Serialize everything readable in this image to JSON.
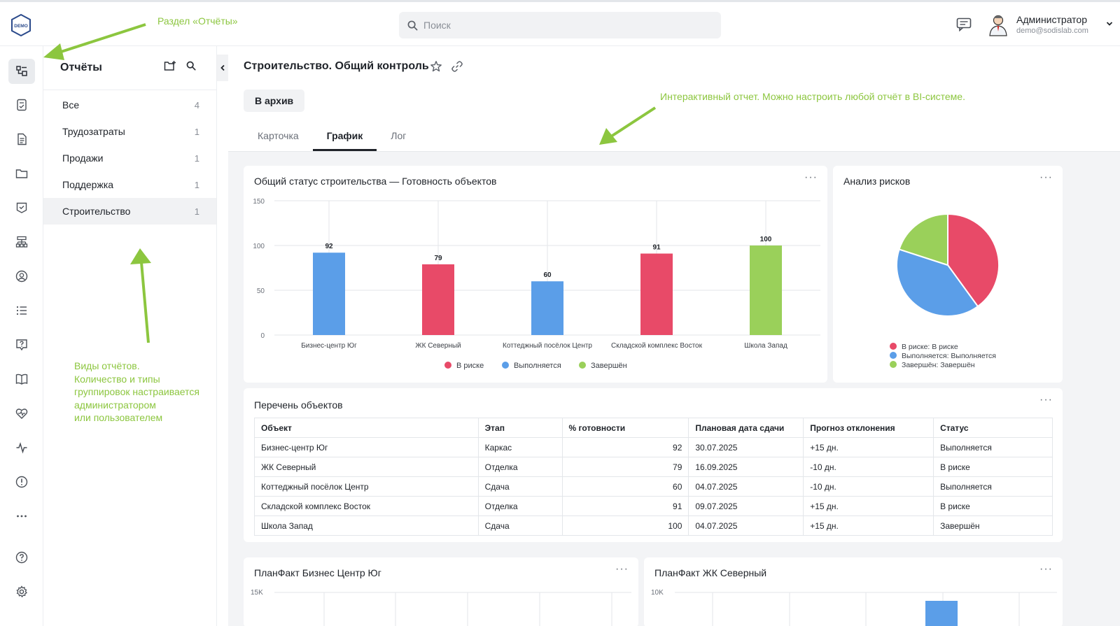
{
  "topbar": {
    "logo_text": "DEMO",
    "search_placeholder": "Поиск",
    "user_name": "Администратор",
    "user_email": "demo@sodislab.com"
  },
  "rail": {
    "icons": [
      "reports-icon",
      "document-check-icon",
      "document-icon",
      "folder-icon",
      "task-check-icon",
      "org-structure-icon",
      "profile-icon",
      "list-icon",
      "support-icon",
      "book-icon",
      "heart-pulse-icon",
      "activity-icon",
      "alert-icon",
      "more-icon",
      "help-icon",
      "settings-icon"
    ]
  },
  "panel": {
    "title": "Отчёты",
    "items": [
      {
        "label": "Все",
        "count": "4"
      },
      {
        "label": "Трудозатраты",
        "count": "1"
      },
      {
        "label": "Продажи",
        "count": "1"
      },
      {
        "label": "Поддержка",
        "count": "1"
      },
      {
        "label": "Строительство",
        "count": "1"
      }
    ]
  },
  "main": {
    "title": "Строительство. Общий контроль",
    "archive_button": "В архив",
    "tabs": [
      "Карточка",
      "График",
      "Лог"
    ],
    "active_tab": "График"
  },
  "colors": {
    "at_risk": "#e84a68",
    "in_progress": "#5b9ee8",
    "done": "#9ad05a",
    "annotation": "#8cc63f"
  },
  "chart_data": [
    {
      "type": "bar",
      "title": "Общий статус строительства — Готовность объектов",
      "categories": [
        "Бизнес-центр Юг",
        "ЖК Северный",
        "Коттеджный посёлок Центр",
        "Складской комплекс Восток",
        "Школа Запад"
      ],
      "values": [
        92,
        79,
        60,
        91,
        100
      ],
      "status": [
        "Выполняется",
        "В риске",
        "Выполняется",
        "В риске",
        "Завершён"
      ],
      "ylim": [
        0,
        150
      ],
      "yticks": [
        0,
        50,
        100,
        150
      ],
      "legend": [
        "В риске",
        "Выполняется",
        "Завершён"
      ],
      "xlabel": "",
      "ylabel": ""
    },
    {
      "type": "pie",
      "title": "Анализ рисков",
      "labels": [
        "В риске: В риске",
        "Выполняется: Выполняется",
        "Завершён: Завершён"
      ],
      "values": [
        2,
        2,
        1
      ]
    },
    {
      "type": "table",
      "title": "Перечень объектов",
      "columns": [
        "Объект",
        "Этап",
        "% готовности",
        "Плановая дата сдачи",
        "Прогноз отклонения",
        "Статус"
      ],
      "rows": [
        [
          "Бизнес-центр Юг",
          "Каркас",
          "92",
          "30.07.2025",
          "+15 дн.",
          "Выполняется"
        ],
        [
          "ЖК Северный",
          "Отделка",
          "79",
          "16.09.2025",
          "-10 дн.",
          "В риске"
        ],
        [
          "Коттеджный посёлок Центр",
          "Сдача",
          "60",
          "04.07.2025",
          "-10 дн.",
          "Выполняется"
        ],
        [
          "Складской комплекс Восток",
          "Отделка",
          "91",
          "09.07.2025",
          "+15 дн.",
          "В риске"
        ],
        [
          "Школа Запад",
          "Сдача",
          "100",
          "04.07.2025",
          "+15 дн.",
          "Завершён"
        ]
      ]
    },
    {
      "type": "bar",
      "title": "ПланФакт Бизнес Центр Юг",
      "y_top_tick": "15K"
    },
    {
      "type": "bar",
      "title": "ПланФакт ЖК Северный",
      "y_top_tick": "10K"
    }
  ],
  "annotations": {
    "section": "Раздел «Отчёты»",
    "report_types": [
      "Виды отчётов.",
      "Количество и типы",
      "группировок настраивается",
      "администратором",
      "или пользователем"
    ],
    "interactive": "Интерактивный отчет. Можно настроить любой отчёт в BI-системе."
  }
}
